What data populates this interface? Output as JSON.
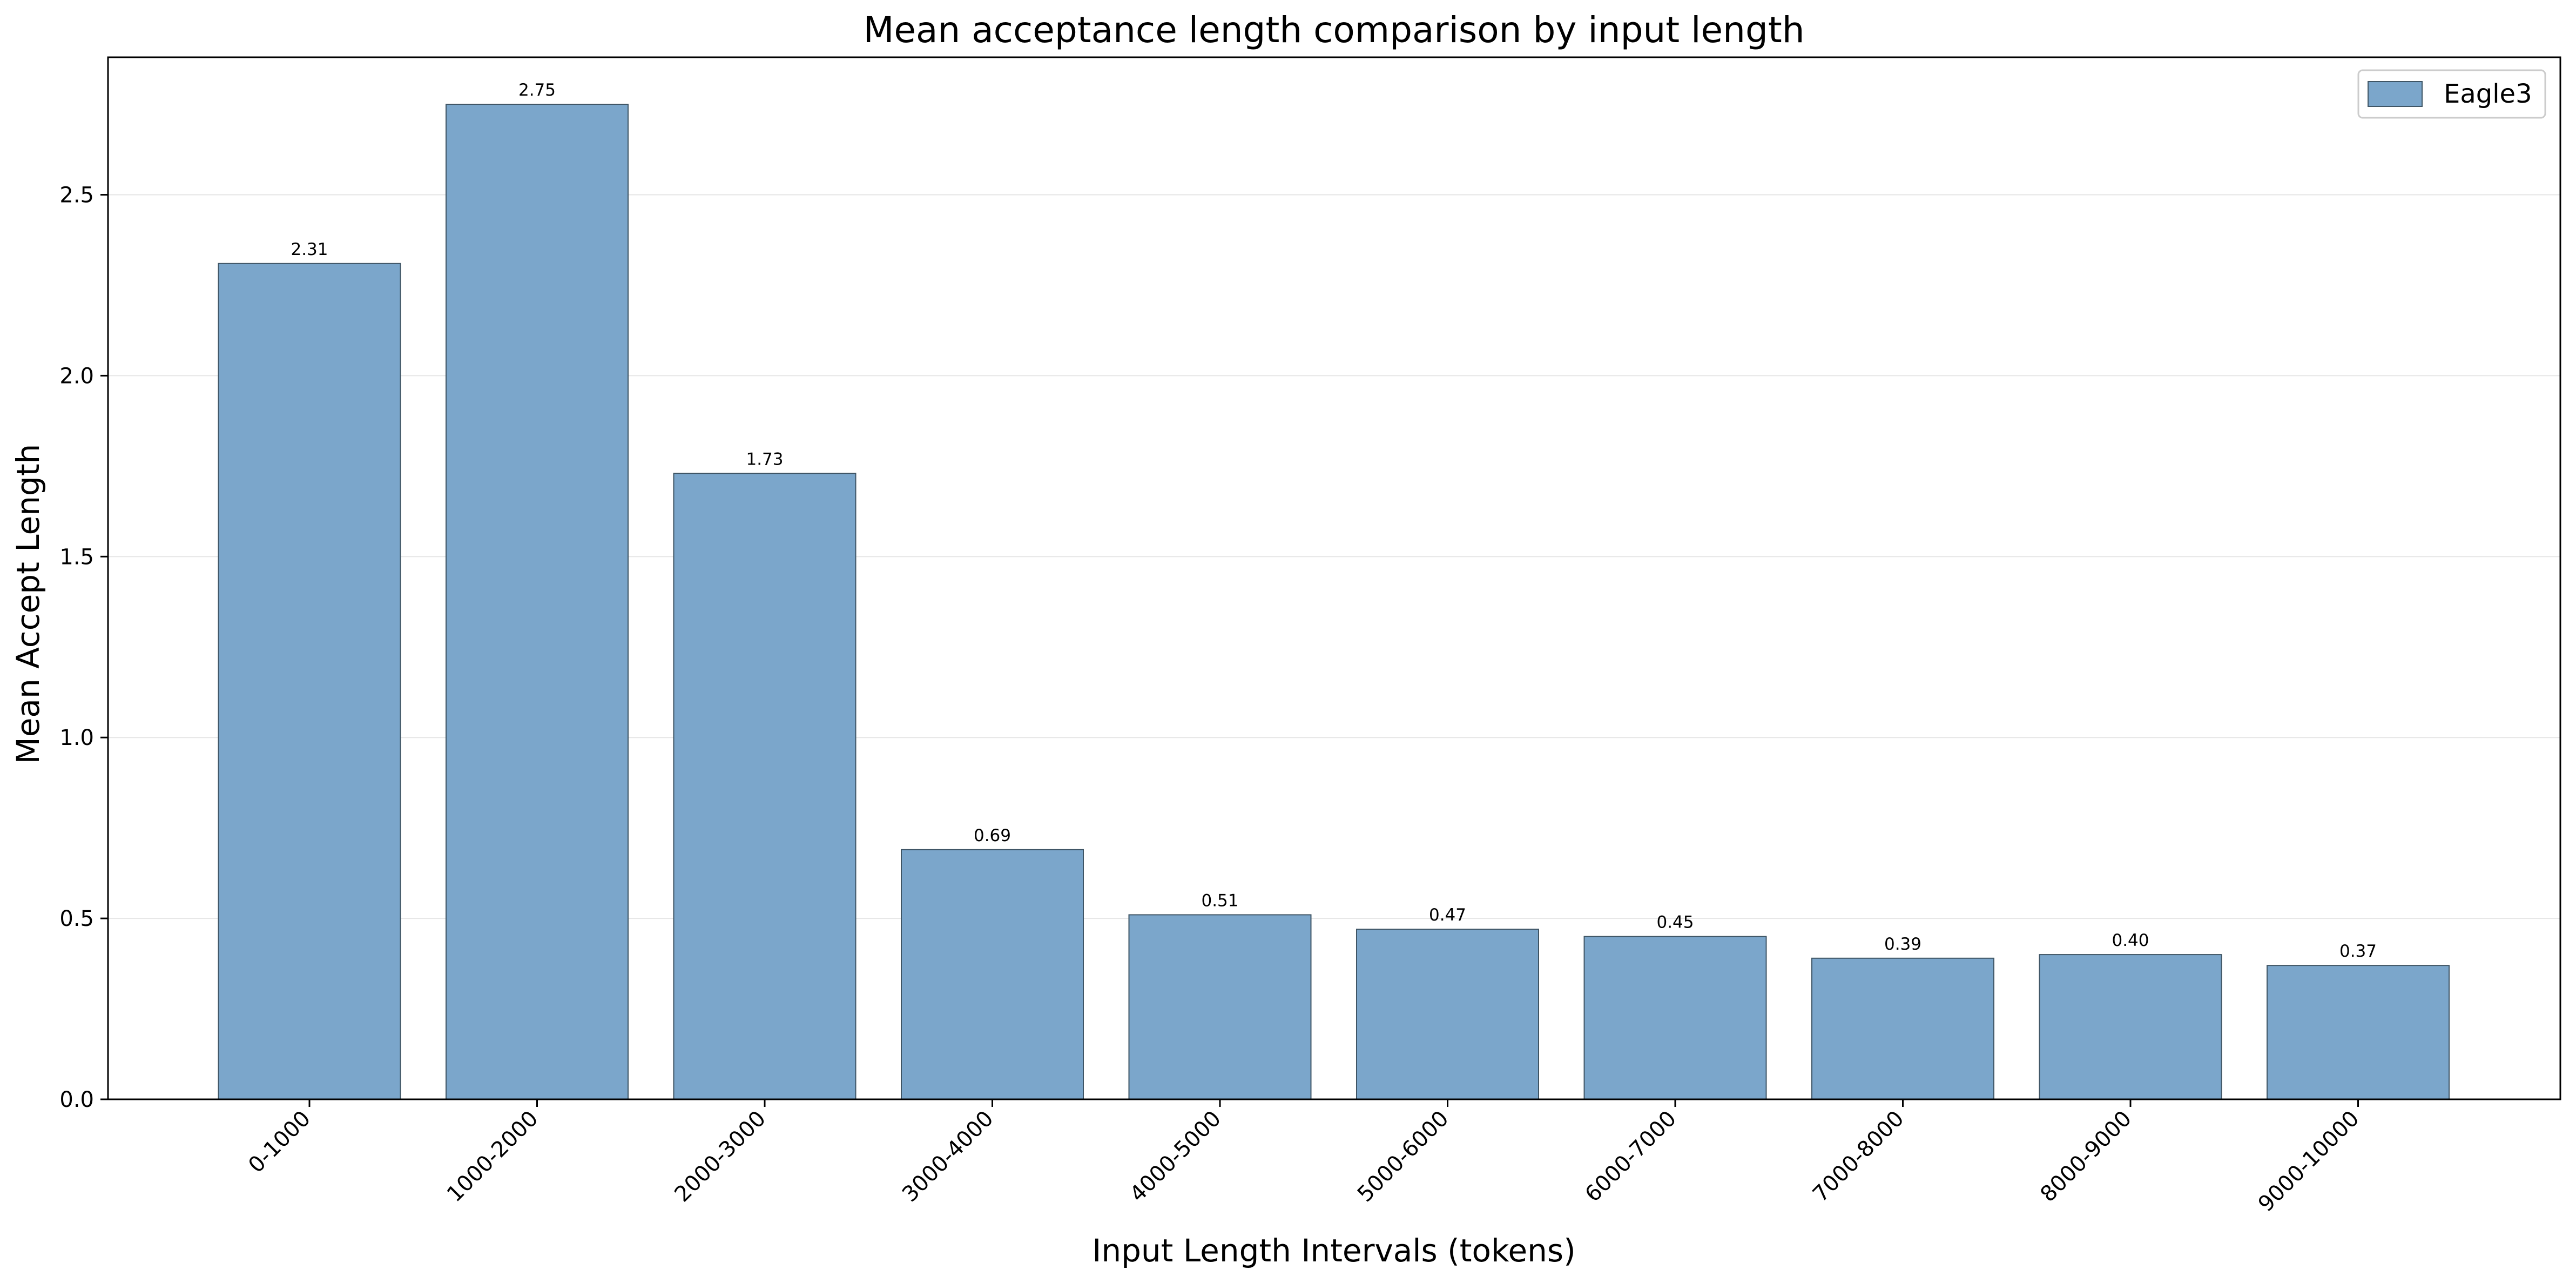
{
  "chart_data": {
    "type": "bar",
    "title": "Mean acceptance length comparison by input length",
    "xlabel": "Input Length Intervals (tokens)",
    "ylabel": "Mean Accept Length",
    "categories": [
      "0-1000",
      "1000-2000",
      "2000-3000",
      "3000-4000",
      "4000-5000",
      "5000-6000",
      "6000-7000",
      "7000-8000",
      "8000-9000",
      "9000-10000"
    ],
    "series": [
      {
        "name": "Eagle3",
        "values": [
          2.31,
          2.75,
          1.73,
          0.69,
          0.51,
          0.47,
          0.45,
          0.39,
          0.4,
          0.37
        ],
        "value_labels": [
          "2.31",
          "2.75",
          "1.73",
          "0.69",
          "0.51",
          "0.47",
          "0.45",
          "0.39",
          "0.40",
          "0.37"
        ],
        "color": "#7ba6cb",
        "edge_color": "#3f5565"
      }
    ],
    "ylim": [
      0,
      2.88
    ],
    "yticks": [
      0.0,
      0.5,
      1.0,
      1.5,
      2.0,
      2.5
    ],
    "ytick_labels": [
      "0.0",
      "0.5",
      "1.0",
      "1.5",
      "2.0",
      "2.5"
    ],
    "x_tick_rotation_deg": 45,
    "grid": {
      "y": true,
      "x": false,
      "color": "#e6e6e6"
    },
    "legend": {
      "position": "top-right"
    }
  }
}
